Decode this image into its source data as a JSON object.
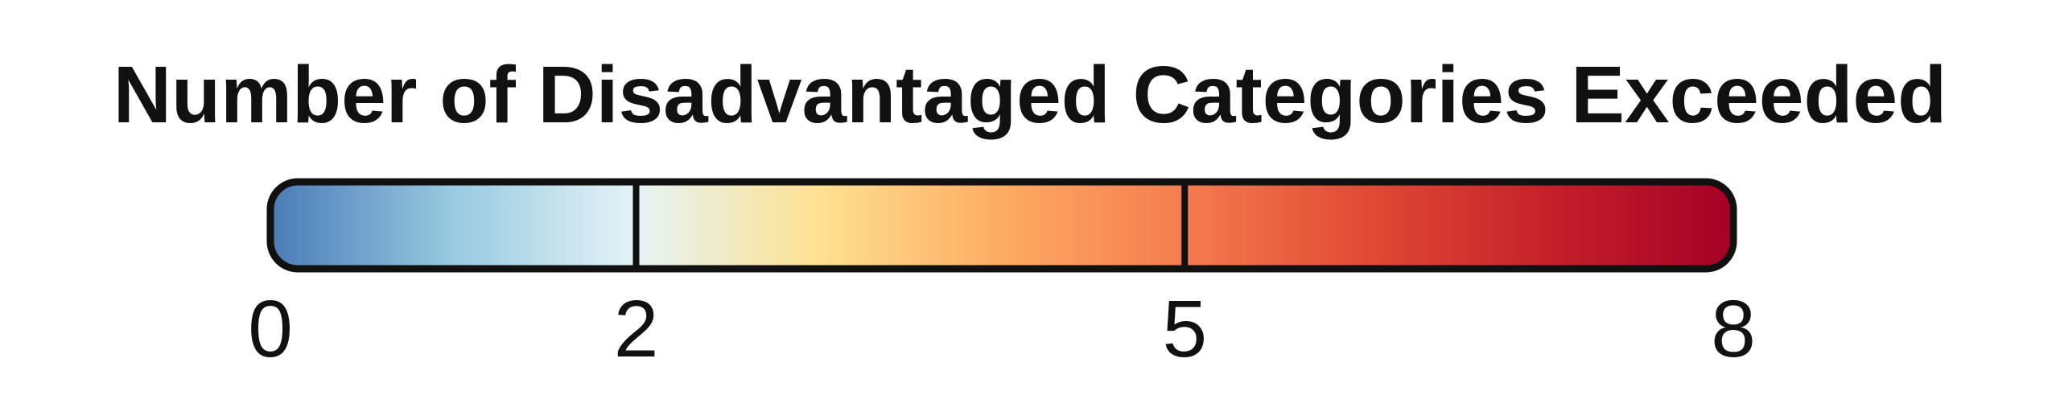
{
  "chart_data": {
    "type": "colorbar",
    "title": "Number of Disadvantaged Categories Exceeded",
    "range": [
      0,
      8
    ],
    "ticks": [
      0,
      2,
      5,
      8
    ],
    "tick_labels": [
      "0",
      "2",
      "5",
      "8"
    ],
    "class_breaks": [
      2,
      5
    ],
    "color_stops": [
      {
        "value": 0,
        "color": "#4a7bb7"
      },
      {
        "value": 1,
        "color": "#98cae0"
      },
      {
        "value": 2,
        "color": "#e5f3f6"
      },
      {
        "value": 3,
        "color": "#fee191"
      },
      {
        "value": 4,
        "color": "#fdab63"
      },
      {
        "value": 5,
        "color": "#f47c4f"
      },
      {
        "value": 6,
        "color": "#e04a34"
      },
      {
        "value": 7,
        "color": "#c5202a"
      },
      {
        "value": 8,
        "color": "#a50026"
      }
    ]
  }
}
